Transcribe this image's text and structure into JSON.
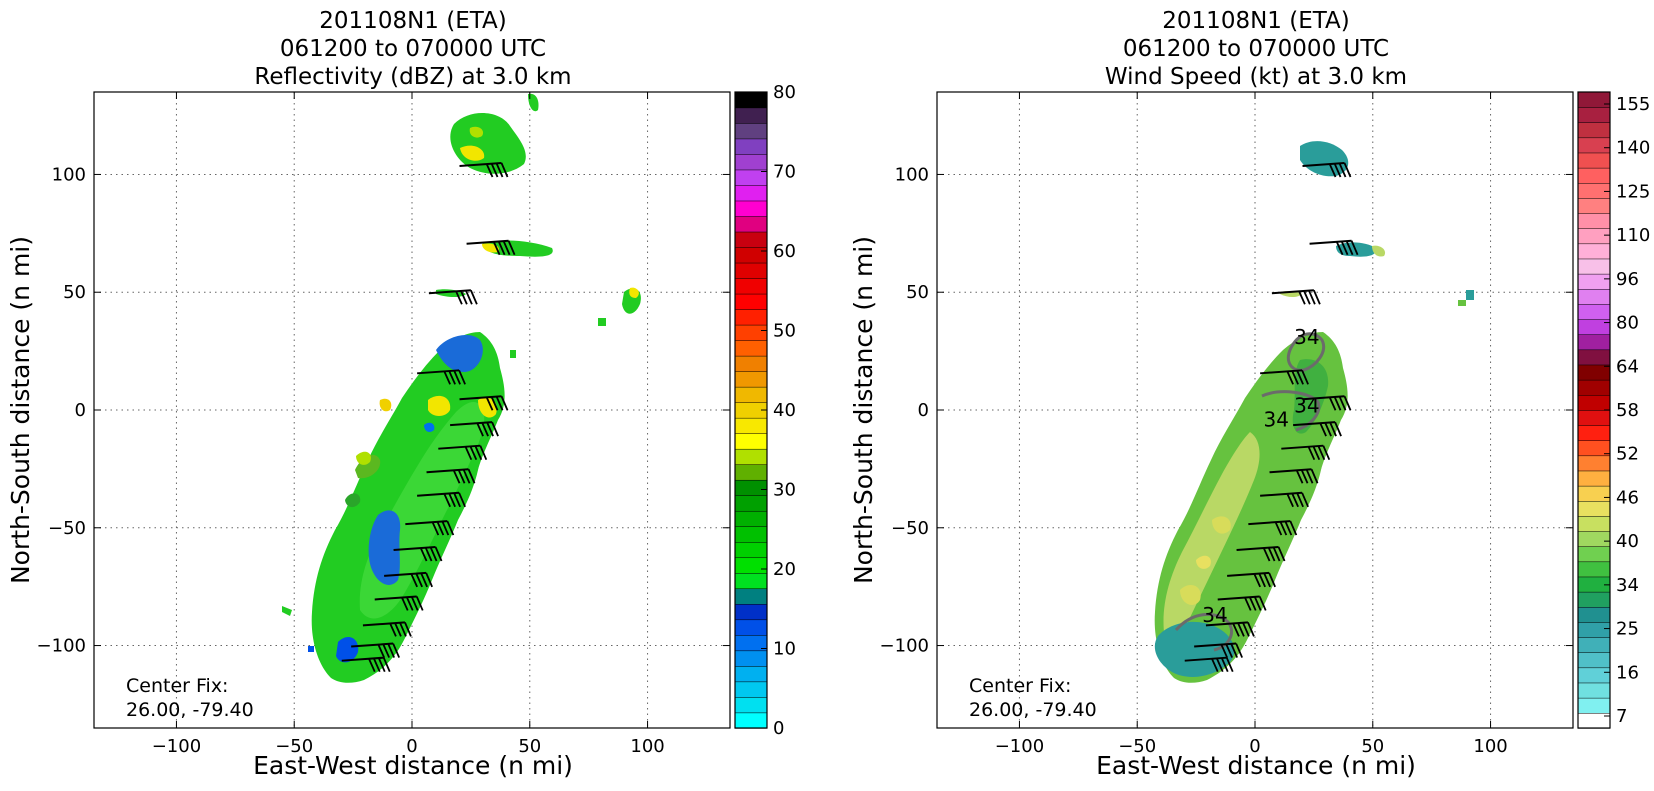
{
  "chart_data": [
    {
      "type": "heatmap",
      "title_lines": [
        "201108N1 (ETA)",
        "061200 to 070000 UTC",
        "Reflectivity (dBZ) at 3.0 km"
      ],
      "xlabel": "East-West distance (n mi)",
      "ylabel": "North-South distance (n mi)",
      "xlim": [
        -135,
        135
      ],
      "ylim": [
        -135,
        135
      ],
      "xticks": [
        "−100",
        "−50",
        "0",
        "50",
        "100"
      ],
      "xtick_values": [
        -100,
        -50,
        0,
        50,
        100
      ],
      "yticks": [
        "−100",
        "−50",
        "0",
        "50",
        "100"
      ],
      "ytick_values": [
        -100,
        -50,
        0,
        50,
        100
      ],
      "grid": true,
      "annotation_lines": [
        "Center Fix:",
        "26.00, -79.40"
      ],
      "colorbar": {
        "min": 0,
        "max": 80,
        "tick_labels": [
          "0",
          "10",
          "20",
          "30",
          "40",
          "50",
          "60",
          "70",
          "80"
        ],
        "tick_values": [
          0,
          10,
          20,
          30,
          40,
          50,
          60,
          70,
          80
        ],
        "colors": [
          "#00ffff",
          "#00e0f0",
          "#00c8f0",
          "#00b0f0",
          "#0090f0",
          "#0070f0",
          "#0050e8",
          "#0030c8",
          "#008080",
          "#00e020",
          "#00e000",
          "#00d000",
          "#00c000",
          "#00b000",
          "#00a000",
          "#009000",
          "#60b000",
          "#b0e000",
          "#ffff00",
          "#f8e800",
          "#f0d000",
          "#f0b800",
          "#f09800",
          "#f08000",
          "#ff6000",
          "#ff4000",
          "#ff2000",
          "#ff0000",
          "#f00000",
          "#e00000",
          "#d00000",
          "#c80010",
          "#e00080",
          "#ff00d0",
          "#e020f0",
          "#c040f0",
          "#a040d0",
          "#8040c0",
          "#604080",
          "#402050",
          "#000000"
        ]
      },
      "field_colors": {
        "base": "#22cc22",
        "light": "#44dd33",
        "mid": "#5bb820",
        "weak": "#1a6bd8",
        "strong": "#f2e600"
      },
      "barbs": [
        {
          "x": 38,
          "y": 104
        },
        {
          "x": 41,
          "y": 71
        },
        {
          "x": 25,
          "y": 50
        },
        {
          "x": 20,
          "y": 16
        },
        {
          "x": 38,
          "y": 5
        },
        {
          "x": 34,
          "y": -6
        },
        {
          "x": 29,
          "y": -16
        },
        {
          "x": 24,
          "y": -26
        },
        {
          "x": 20,
          "y": -36
        },
        {
          "x": 15,
          "y": -48
        },
        {
          "x": 10,
          "y": -59
        },
        {
          "x": 6,
          "y": -70
        },
        {
          "x": 2,
          "y": -80
        },
        {
          "x": -3,
          "y": -91
        },
        {
          "x": -8,
          "y": -100
        },
        {
          "x": -12,
          "y": -106
        }
      ]
    },
    {
      "type": "heatmap",
      "title_lines": [
        "201108N1 (ETA)",
        "061200 to 070000 UTC",
        "Wind Speed (kt) at 3.0 km"
      ],
      "xlabel": "East-West distance (n mi)",
      "ylabel": "North-South distance (n mi)",
      "xlim": [
        -135,
        135
      ],
      "ylim": [
        -135,
        135
      ],
      "xticks": [
        "−100",
        "−50",
        "0",
        "50",
        "100"
      ],
      "xtick_values": [
        -100,
        -50,
        0,
        50,
        100
      ],
      "yticks": [
        "−100",
        "−50",
        "0",
        "50",
        "100"
      ],
      "ytick_values": [
        -100,
        -50,
        0,
        50,
        100
      ],
      "grid": true,
      "annotation_lines": [
        "Center Fix:",
        "26.00, -79.40"
      ],
      "contour_labels": [
        {
          "text": "34",
          "x": 22,
          "y": 31
        },
        {
          "text": "34",
          "x": 22,
          "y": 2
        },
        {
          "text": "34",
          "x": 9,
          "y": -4
        },
        {
          "text": "34",
          "x": -17,
          "y": -87
        }
      ],
      "colorbar": {
        "tick_labels": [
          "7",
          "16",
          "25",
          "34",
          "40",
          "46",
          "52",
          "58",
          "64",
          "80",
          "96",
          "110",
          "125",
          "140",
          "155"
        ],
        "colors": [
          "#ffffff",
          "#80f0f0",
          "#70e0e0",
          "#60d0d8",
          "#50c0c8",
          "#40b0b8",
          "#30a0a8",
          "#209090",
          "#20a060",
          "#20b040",
          "#40c040",
          "#70d050",
          "#a0d860",
          "#c8e060",
          "#e8e060",
          "#f8d050",
          "#ffb040",
          "#ff8030",
          "#ff5020",
          "#ff2010",
          "#e01010",
          "#c00000",
          "#a00000",
          "#800000",
          "#801040",
          "#a020a0",
          "#c040e0",
          "#d060f0",
          "#e080f0",
          "#f0a0f0",
          "#f8c0e8",
          "#ffb0d8",
          "#ffa0c0",
          "#ff90a8",
          "#ff8080",
          "#ff7070",
          "#ff6060",
          "#f05050",
          "#d84050",
          "#c03040",
          "#a82040",
          "#901838"
        ]
      },
      "field_colors": {
        "base": "#66c23f",
        "light": "#b9d865",
        "mid": "#d8dc5a",
        "low": "#2a9d9a"
      },
      "barbs": [
        {
          "x": 38,
          "y": 104
        },
        {
          "x": 41,
          "y": 71
        },
        {
          "x": 25,
          "y": 50
        },
        {
          "x": 20,
          "y": 16
        },
        {
          "x": 38,
          "y": 5
        },
        {
          "x": 34,
          "y": -6
        },
        {
          "x": 29,
          "y": -16
        },
        {
          "x": 24,
          "y": -26
        },
        {
          "x": 20,
          "y": -36
        },
        {
          "x": 15,
          "y": -48
        },
        {
          "x": 10,
          "y": -59
        },
        {
          "x": 6,
          "y": -70
        },
        {
          "x": 2,
          "y": -80
        },
        {
          "x": -3,
          "y": -91
        },
        {
          "x": -8,
          "y": -100
        },
        {
          "x": -12,
          "y": -106
        }
      ]
    }
  ]
}
